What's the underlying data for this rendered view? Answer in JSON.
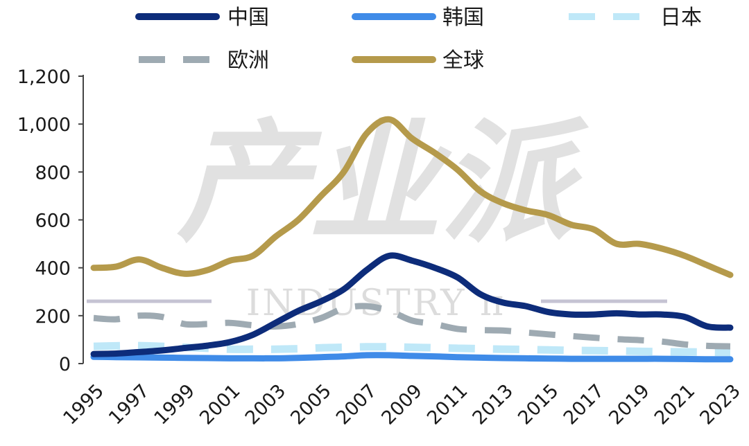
{
  "chart_data": {
    "type": "line",
    "x": [
      1995,
      1996,
      1997,
      1998,
      1999,
      2000,
      2001,
      2002,
      2003,
      2004,
      2005,
      2006,
      2007,
      2008,
      2009,
      2010,
      2011,
      2012,
      2013,
      2014,
      2015,
      2016,
      2017,
      2018,
      2019,
      2020,
      2021,
      2022,
      2023
    ],
    "x_tick_labels": [
      "1995",
      "1997",
      "1999",
      "2001",
      "2003",
      "2005",
      "2007",
      "2009",
      "2011",
      "2013",
      "2015",
      "2017",
      "2019",
      "2021",
      "2023"
    ],
    "ylim": [
      0,
      1200
    ],
    "y_ticks": [
      0,
      200,
      400,
      600,
      800,
      1000,
      1200
    ],
    "y_tick_labels": [
      "0",
      "200",
      "400",
      "600",
      "800",
      "1,000",
      "1,200"
    ],
    "legend_position": "top",
    "series": [
      {
        "name": "中国",
        "color": "#0d2c7a",
        "dash": "solid",
        "values": [
          40,
          42,
          48,
          55,
          65,
          75,
          90,
          120,
          170,
          220,
          260,
          310,
          390,
          450,
          430,
          400,
          360,
          290,
          255,
          240,
          215,
          205,
          205,
          210,
          205,
          205,
          195,
          155,
          150
        ]
      },
      {
        "name": "韩国",
        "color": "#3f8be8",
        "dash": "solid",
        "values": [
          28,
          27,
          26,
          25,
          24,
          23,
          22,
          22,
          22,
          24,
          27,
          30,
          35,
          35,
          32,
          30,
          27,
          25,
          23,
          22,
          21,
          20,
          20,
          20,
          20,
          20,
          19,
          18,
          18
        ]
      },
      {
        "name": "日本",
        "color": "#bfe8f8",
        "dash": "dash",
        "values": [
          72,
          74,
          75,
          72,
          68,
          64,
          60,
          60,
          60,
          62,
          66,
          68,
          70,
          70,
          68,
          66,
          64,
          62,
          60,
          59,
          57,
          55,
          54,
          53,
          51,
          50,
          49,
          48,
          47
        ]
      },
      {
        "name": "欧洲",
        "color": "#9eaab2",
        "dash": "dash",
        "values": [
          190,
          185,
          200,
          195,
          165,
          165,
          170,
          160,
          155,
          165,
          190,
          230,
          240,
          220,
          180,
          165,
          145,
          140,
          138,
          130,
          122,
          115,
          108,
          102,
          98,
          92,
          80,
          74,
          72
        ]
      },
      {
        "name": "全球",
        "color": "#b59a4b",
        "dash": "solid",
        "values": [
          400,
          405,
          435,
          400,
          375,
          390,
          430,
          450,
          530,
          600,
          700,
          800,
          960,
          1020,
          940,
          880,
          810,
          720,
          670,
          640,
          620,
          580,
          560,
          500,
          500,
          480,
          450,
          410,
          370
        ]
      }
    ]
  },
  "watermark": {
    "big": "产业派",
    "small": "INDUSTRY π"
  }
}
